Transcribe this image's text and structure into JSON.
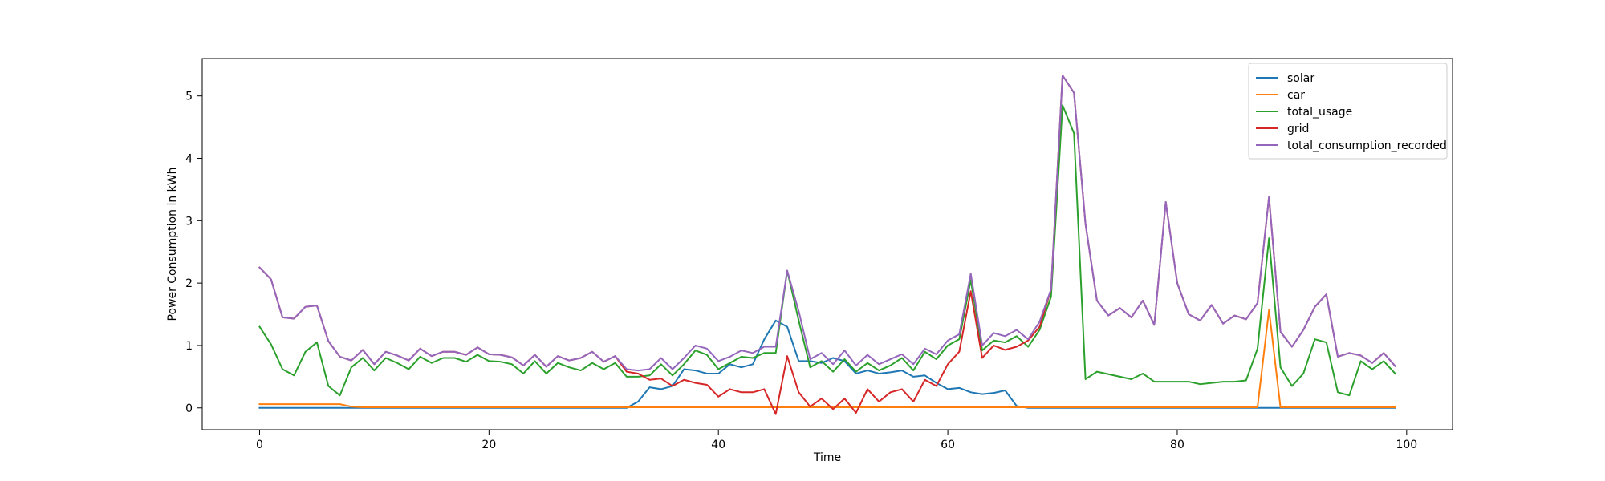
{
  "chart_data": {
    "type": "line",
    "title": "",
    "xlabel": "Time",
    "ylabel": "Power Consumption in kWh",
    "xlim": [
      -5,
      104
    ],
    "ylim": [
      -0.35,
      5.6
    ],
    "xticks": [
      0,
      20,
      40,
      60,
      80,
      100
    ],
    "yticks": [
      0,
      1,
      2,
      3,
      4,
      5
    ],
    "grid": false,
    "legend_position": "top-right",
    "x": [
      0,
      1,
      2,
      3,
      4,
      5,
      6,
      7,
      8,
      9,
      10,
      11,
      12,
      13,
      14,
      15,
      16,
      17,
      18,
      19,
      20,
      21,
      22,
      23,
      24,
      25,
      26,
      27,
      28,
      29,
      30,
      31,
      32,
      33,
      34,
      35,
      36,
      37,
      38,
      39,
      40,
      41,
      42,
      43,
      44,
      45,
      46,
      47,
      48,
      49,
      50,
      51,
      52,
      53,
      54,
      55,
      56,
      57,
      58,
      59,
      60,
      61,
      62,
      63,
      64,
      65,
      66,
      67,
      68,
      69,
      70,
      71,
      72,
      73,
      74,
      75,
      76,
      77,
      78,
      79,
      80,
      81,
      82,
      83,
      84,
      85,
      86,
      87,
      88,
      89,
      90,
      91,
      92,
      93,
      94,
      95,
      96,
      97,
      98,
      99
    ],
    "series": [
      {
        "name": "solar",
        "color": "#1f77b4",
        "values": [
          0,
          0,
          0,
          0,
          0,
          0,
          0,
          0,
          0,
          0,
          0,
          0,
          0,
          0,
          0,
          0,
          0,
          0,
          0,
          0,
          0,
          0,
          0,
          0,
          0,
          0,
          0,
          0,
          0,
          0,
          0,
          0,
          0,
          0.1,
          0.33,
          0.3,
          0.35,
          0.62,
          0.6,
          0.55,
          0.55,
          0.7,
          0.65,
          0.7,
          1.1,
          1.4,
          1.3,
          0.75,
          0.75,
          0.72,
          0.8,
          0.75,
          0.55,
          0.6,
          0.55,
          0.57,
          0.6,
          0.5,
          0.52,
          0.4,
          0.3,
          0.32,
          0.25,
          0.22,
          0.24,
          0.28,
          0.03,
          0,
          0,
          0,
          0,
          0,
          0,
          0,
          0,
          0,
          0,
          0,
          0,
          0,
          0,
          0,
          0,
          0,
          0,
          0,
          0,
          0,
          0,
          0,
          0,
          0,
          0,
          0,
          0,
          0,
          0,
          0,
          0,
          0
        ]
      },
      {
        "name": "car",
        "color": "#ff7f0e",
        "values": [
          0.06,
          0.06,
          0.06,
          0.06,
          0.06,
          0.06,
          0.06,
          0.06,
          0.02,
          0.01,
          0.01,
          0.01,
          0.01,
          0.01,
          0.01,
          0.01,
          0.01,
          0.01,
          0.01,
          0.01,
          0.01,
          0.01,
          0.01,
          0.01,
          0.01,
          0.01,
          0.01,
          0.01,
          0.01,
          0.01,
          0.01,
          0.01,
          0.01,
          0.01,
          0.01,
          0.01,
          0.01,
          0.01,
          0.01,
          0.01,
          0.01,
          0.01,
          0.01,
          0.01,
          0.01,
          0.01,
          0.01,
          0.01,
          0.01,
          0.01,
          0.01,
          0.01,
          0.01,
          0.01,
          0.01,
          0.01,
          0.01,
          0.01,
          0.01,
          0.01,
          0.01,
          0.01,
          0.01,
          0.01,
          0.01,
          0.01,
          0.01,
          0.01,
          0.01,
          0.01,
          0.01,
          0.01,
          0.01,
          0.01,
          0.01,
          0.01,
          0.01,
          0.01,
          0.01,
          0.01,
          0.01,
          0.01,
          0.01,
          0.01,
          0.01,
          0.01,
          0.01,
          0.01,
          1.57,
          0.01,
          0.01,
          0.01,
          0.01,
          0.01,
          0.01,
          0.01,
          0.01,
          0.01,
          0.01,
          0.01
        ]
      },
      {
        "name": "total_usage",
        "color": "#2ca02c",
        "values": [
          1.3,
          1.02,
          0.62,
          0.52,
          0.9,
          1.05,
          0.35,
          0.2,
          0.65,
          0.8,
          0.6,
          0.8,
          0.72,
          0.62,
          0.82,
          0.72,
          0.8,
          0.8,
          0.74,
          0.85,
          0.75,
          0.74,
          0.7,
          0.55,
          0.75,
          0.55,
          0.72,
          0.65,
          0.6,
          0.72,
          0.62,
          0.72,
          0.5,
          0.5,
          0.52,
          0.7,
          0.52,
          0.7,
          0.92,
          0.85,
          0.62,
          0.72,
          0.82,
          0.8,
          0.88,
          0.88,
          2.2,
          1.4,
          0.65,
          0.75,
          0.58,
          0.78,
          0.58,
          0.72,
          0.6,
          0.68,
          0.8,
          0.6,
          0.9,
          0.78,
          1.0,
          1.1,
          2.05,
          0.92,
          1.08,
          1.05,
          1.15,
          0.98,
          1.25,
          1.78,
          4.85,
          4.4,
          0.46,
          0.58,
          0.54,
          0.5,
          0.46,
          0.55,
          0.42,
          0.42,
          0.42,
          0.42,
          0.38,
          0.4,
          0.42,
          0.42,
          0.44,
          0.95,
          2.72,
          0.65,
          0.35,
          0.55,
          1.1,
          1.05,
          0.25,
          0.2,
          0.75,
          0.62,
          0.75,
          0.55
        ]
      },
      {
        "name": "grid",
        "color": "#d62728",
        "values": [
          2.25,
          2.06,
          1.45,
          1.43,
          1.62,
          1.64,
          1.07,
          0.82,
          0.76,
          0.93,
          0.7,
          0.9,
          0.84,
          0.76,
          0.95,
          0.83,
          0.9,
          0.9,
          0.85,
          0.97,
          0.86,
          0.85,
          0.81,
          0.68,
          0.85,
          0.66,
          0.83,
          0.76,
          0.8,
          0.9,
          0.74,
          0.83,
          0.58,
          0.55,
          0.45,
          0.47,
          0.35,
          0.45,
          0.4,
          0.37,
          0.18,
          0.3,
          0.25,
          0.25,
          0.3,
          -0.1,
          0.83,
          0.25,
          0.02,
          0.15,
          -0.02,
          0.15,
          -0.08,
          0.3,
          0.1,
          0.25,
          0.3,
          0.1,
          0.45,
          0.35,
          0.7,
          0.9,
          1.87,
          0.8,
          1.0,
          0.93,
          0.98,
          1.08,
          1.3,
          1.9,
          5.33,
          5.05,
          2.95,
          1.72,
          1.48,
          1.6,
          1.45,
          1.72,
          1.33,
          3.3,
          2.0,
          1.5,
          1.4,
          1.65,
          1.35,
          1.48,
          1.42,
          1.68,
          3.38,
          1.22,
          0.98,
          1.25,
          1.62,
          1.82,
          0.82,
          0.88,
          0.84,
          0.72,
          0.88,
          0.67
        ]
      },
      {
        "name": "total_consumption_recorded",
        "color": "#9467bd",
        "values": [
          2.25,
          2.06,
          1.45,
          1.43,
          1.62,
          1.64,
          1.07,
          0.82,
          0.76,
          0.93,
          0.7,
          0.9,
          0.84,
          0.76,
          0.95,
          0.83,
          0.9,
          0.9,
          0.85,
          0.97,
          0.86,
          0.85,
          0.81,
          0.68,
          0.85,
          0.66,
          0.83,
          0.76,
          0.8,
          0.9,
          0.74,
          0.83,
          0.62,
          0.6,
          0.62,
          0.8,
          0.62,
          0.8,
          1.0,
          0.95,
          0.75,
          0.82,
          0.92,
          0.88,
          0.98,
          0.98,
          2.2,
          1.55,
          0.78,
          0.88,
          0.7,
          0.92,
          0.68,
          0.85,
          0.7,
          0.78,
          0.86,
          0.7,
          0.95,
          0.86,
          1.08,
          1.18,
          2.15,
          1.0,
          1.2,
          1.15,
          1.25,
          1.1,
          1.38,
          1.9,
          5.33,
          5.05,
          2.95,
          1.72,
          1.48,
          1.6,
          1.45,
          1.72,
          1.33,
          3.3,
          2.0,
          1.5,
          1.4,
          1.65,
          1.35,
          1.48,
          1.42,
          1.68,
          3.38,
          1.22,
          0.98,
          1.25,
          1.62,
          1.82,
          0.82,
          0.88,
          0.84,
          0.72,
          0.88,
          0.67
        ]
      }
    ]
  }
}
